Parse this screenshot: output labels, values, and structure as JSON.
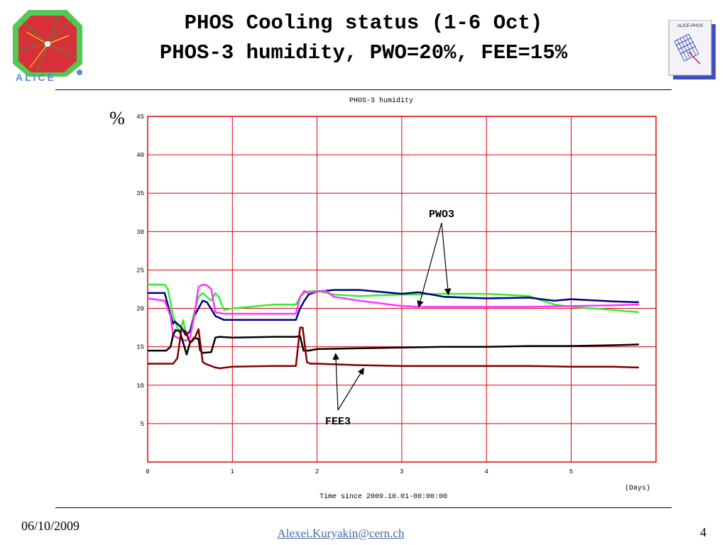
{
  "slide": {
    "title_line1": "PHOS Cooling status (1-6 Oct)",
    "title_line2": "PHOS-3 humidity, PWO=20%, FEE=15%",
    "logo_left_text": "ALICE",
    "logo_right_text": "ALICE-PHOS",
    "footer_date": "06/10/2009",
    "footer_email": "Alexei.Kuryakin@cern.ch",
    "footer_page": "4"
  },
  "chart_data": {
    "type": "line",
    "title": "PHOS-3 humidity",
    "xlabel": "Time since 2009.10.01-00:00:00",
    "xunit": "(Days)",
    "ylabel": "%",
    "xlim": [
      0,
      6
    ],
    "ylim": [
      0,
      45
    ],
    "xticks": [
      0,
      1,
      2,
      3,
      4,
      5
    ],
    "yticks": [
      5,
      10,
      15,
      20,
      25,
      30,
      35,
      40,
      45
    ],
    "grid": true,
    "annotations": [
      {
        "text": "PWO3",
        "points": [
          [
            3.2,
            20.2
          ],
          [
            3.55,
            21.8
          ]
        ]
      },
      {
        "text": "FEE3",
        "points": [
          [
            2.22,
            14.1
          ],
          [
            2.55,
            12.2
          ]
        ]
      }
    ],
    "series": [
      {
        "color": "#33ee33",
        "x": [
          0,
          0.2,
          0.24,
          0.3,
          0.35,
          0.38,
          0.42,
          0.45,
          0.5,
          0.55,
          0.6,
          0.65,
          0.7,
          0.75,
          0.8,
          0.84,
          0.9,
          1.0,
          1.5,
          1.75,
          1.8,
          1.85,
          1.9,
          2.0,
          2.2,
          2.5,
          3.0,
          3.5,
          4.0,
          4.2,
          4.5,
          4.8,
          5.0,
          5.5,
          5.8
        ],
        "y": [
          23.1,
          23.1,
          22.5,
          19,
          17.5,
          17,
          18.5,
          16.5,
          17,
          19.5,
          21.5,
          22,
          21.5,
          21,
          22,
          21.5,
          19.8,
          20,
          20.5,
          20.5,
          21.5,
          22,
          22.2,
          22.3,
          21.8,
          21.6,
          21.8,
          21.9,
          21.9,
          21.8,
          21.6,
          20.5,
          20.2,
          19.8,
          19.5
        ]
      },
      {
        "color": "#000080",
        "x": [
          0,
          0.2,
          0.25,
          0.3,
          0.32,
          0.35,
          0.4,
          0.45,
          0.5,
          0.55,
          0.6,
          0.65,
          0.7,
          0.8,
          0.9,
          1.0,
          1.5,
          1.75,
          1.8,
          1.85,
          1.9,
          2.0,
          2.2,
          2.5,
          3.0,
          3.2,
          3.5,
          4.0,
          4.5,
          4.8,
          5.0,
          5.5,
          5.8
        ],
        "y": [
          22,
          22,
          20,
          18,
          18.3,
          18,
          17.5,
          16.5,
          17,
          19,
          20,
          21,
          20.8,
          19,
          18.5,
          18.5,
          18.5,
          18.5,
          20,
          21,
          21.8,
          22.2,
          22.4,
          22.4,
          21.9,
          22.1,
          21.5,
          21.3,
          21.4,
          21,
          21.2,
          20.9,
          20.8
        ]
      },
      {
        "color": "#ff33ff",
        "x": [
          0,
          0.2,
          0.27,
          0.3,
          0.35,
          0.4,
          0.45,
          0.5,
          0.55,
          0.6,
          0.65,
          0.7,
          0.75,
          0.8,
          0.9,
          1.0,
          1.5,
          1.75,
          1.8,
          1.85,
          1.9,
          2.0,
          2.1,
          2.2,
          2.5,
          3.0,
          3.2,
          3.5,
          4.0,
          4.5,
          5.0,
          5.5,
          5.8
        ],
        "y": [
          21.3,
          21,
          19,
          16.5,
          16.2,
          16,
          15.8,
          16.2,
          19,
          22.8,
          23.1,
          23,
          22.5,
          19.5,
          19.3,
          19.3,
          19.3,
          19.3,
          21.5,
          22.3,
          22,
          22.2,
          22.3,
          21.5,
          21,
          20.3,
          20.2,
          20.2,
          20.2,
          20.2,
          20.3,
          20.4,
          20.5
        ]
      },
      {
        "color": "#000000",
        "x": [
          0,
          0.22,
          0.27,
          0.3,
          0.33,
          0.38,
          0.42,
          0.46,
          0.5,
          0.55,
          0.6,
          0.62,
          0.65,
          0.75,
          0.8,
          0.85,
          1.0,
          1.5,
          1.75,
          1.8,
          1.84,
          1.9,
          2.0,
          2.5,
          3.0,
          3.5,
          4.0,
          4.5,
          5.0,
          5.5,
          5.8
        ],
        "y": [
          14.5,
          14.5,
          15,
          16.5,
          17.2,
          17,
          15.5,
          14,
          15.5,
          16.2,
          16,
          14.5,
          14.2,
          14.3,
          16.2,
          16.3,
          16.2,
          16.3,
          16.3,
          16.4,
          14.5,
          14.5,
          14.7,
          14.8,
          14.9,
          15,
          15,
          15.1,
          15.1,
          15.2,
          15.3
        ]
      },
      {
        "color": "#800000",
        "x": [
          0,
          0.3,
          0.35,
          0.4,
          0.45,
          0.5,
          0.55,
          0.6,
          0.65,
          0.7,
          0.8,
          0.85,
          1.0,
          1.5,
          1.75,
          1.8,
          1.83,
          1.88,
          1.92,
          2.0,
          2.5,
          3.0,
          3.5,
          4.0,
          4.5,
          5.0,
          5.5,
          5.8
        ],
        "y": [
          12.8,
          12.8,
          13.5,
          17.3,
          17,
          15.5,
          16,
          17.3,
          13,
          12.7,
          12.3,
          12.2,
          12.4,
          12.5,
          12.5,
          17.5,
          17.5,
          13,
          12.8,
          12.8,
          12.6,
          12.5,
          12.5,
          12.5,
          12.5,
          12.4,
          12.4,
          12.3
        ]
      }
    ]
  }
}
